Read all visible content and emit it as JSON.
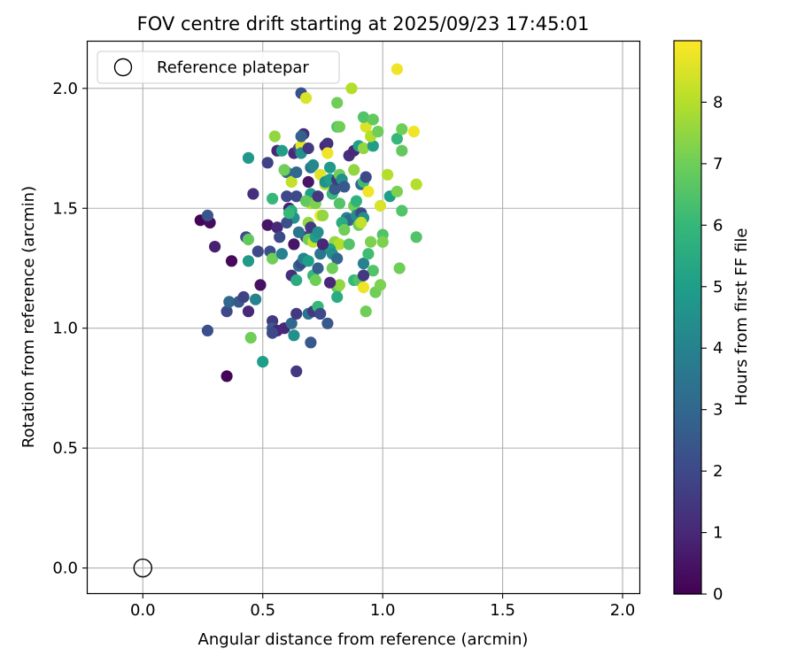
{
  "chart_data": {
    "type": "scatter",
    "title": "FOV centre drift starting at 2025/09/23 17:45:01",
    "xlabel": "Angular distance from reference (arcmin)",
    "ylabel": "Rotation from reference (arcmin)",
    "xlim": [
      -0.23,
      2.07
    ],
    "ylim": [
      -0.105,
      2.195
    ],
    "xticks": [
      0.0,
      0.5,
      1.0,
      1.5,
      2.0
    ],
    "xtick_labels": [
      "0.0",
      "0.5",
      "1.0",
      "1.5",
      "2.0"
    ],
    "yticks": [
      0.0,
      0.5,
      1.0,
      1.5,
      2.0
    ],
    "ytick_labels": [
      "0.0",
      "0.5",
      "1.0",
      "1.5",
      "2.0"
    ],
    "grid": true,
    "legend": {
      "position": "top-left",
      "label": "Reference platepar"
    },
    "reference_point": {
      "x": 0.0,
      "y": 0.0
    },
    "colorbar": {
      "label": "Hours from first FF file",
      "min": 0,
      "max": 9,
      "ticks": [
        0,
        1,
        2,
        3,
        4,
        5,
        6,
        7,
        8
      ],
      "tick_labels": [
        "0",
        "1",
        "2",
        "3",
        "4",
        "5",
        "6",
        "7",
        "8"
      ],
      "colormap": "viridis"
    },
    "colormap_stops": [
      "#440154",
      "#482878",
      "#3e4989",
      "#31688e",
      "#26828e",
      "#1f9e89",
      "#35b779",
      "#6ece58",
      "#b5de2b",
      "#fde725"
    ],
    "points": [
      [
        0.24,
        1.45,
        0.1
      ],
      [
        0.28,
        1.44,
        0.3
      ],
      [
        0.3,
        1.34,
        0.8
      ],
      [
        0.27,
        1.47,
        2.4
      ],
      [
        0.37,
        1.28,
        0.2
      ],
      [
        0.35,
        0.8,
        0.1
      ],
      [
        0.27,
        0.99,
        2.2
      ],
      [
        0.35,
        1.07,
        2.0
      ],
      [
        0.36,
        1.11,
        3.0
      ],
      [
        0.4,
        1.11,
        2.5
      ],
      [
        0.42,
        1.13,
        1.8
      ],
      [
        0.43,
        1.38,
        2.0
      ],
      [
        0.44,
        1.37,
        6.8
      ],
      [
        0.44,
        1.07,
        1.0
      ],
      [
        0.44,
        1.28,
        4.8
      ],
      [
        0.46,
        1.56,
        1.2
      ],
      [
        0.45,
        0.96,
        7.0
      ],
      [
        0.49,
        1.18,
        0.4
      ],
      [
        0.48,
        1.32,
        2.0
      ],
      [
        0.47,
        1.12,
        4.0
      ],
      [
        0.44,
        1.71,
        4.8
      ],
      [
        0.5,
        0.86,
        5.0
      ],
      [
        0.52,
        1.69,
        1.8
      ],
      [
        0.54,
        1.03,
        1.5
      ],
      [
        0.54,
        1.0,
        2.5
      ],
      [
        0.56,
        0.99,
        1.0
      ],
      [
        0.54,
        0.98,
        2.0
      ],
      [
        0.59,
        1.0,
        1.0
      ],
      [
        0.53,
        1.32,
        2.2
      ],
      [
        0.54,
        1.29,
        7.0
      ],
      [
        0.52,
        1.43,
        0.5
      ],
      [
        0.56,
        1.42,
        1.0
      ],
      [
        0.57,
        1.38,
        2.0
      ],
      [
        0.54,
        1.54,
        6.0
      ],
      [
        0.55,
        1.8,
        7.5
      ],
      [
        0.56,
        1.74,
        1.0
      ],
      [
        0.58,
        1.74,
        5.0
      ],
      [
        0.6,
        1.65,
        3.0
      ],
      [
        0.59,
        1.66,
        7.0
      ],
      [
        0.6,
        1.55,
        2.0
      ],
      [
        0.61,
        1.5,
        0.8
      ],
      [
        0.62,
        1.49,
        5.5
      ],
      [
        0.63,
        1.46,
        4.5
      ],
      [
        0.64,
        1.55,
        2.0
      ],
      [
        0.62,
        1.61,
        8.2
      ],
      [
        0.64,
        1.65,
        3.0
      ],
      [
        0.63,
        1.73,
        1.0
      ],
      [
        0.65,
        1.75,
        2.0
      ],
      [
        0.66,
        1.76,
        8.7
      ],
      [
        0.66,
        1.73,
        4.5
      ],
      [
        0.67,
        1.81,
        1.2
      ],
      [
        0.66,
        1.8,
        2.8
      ],
      [
        0.66,
        1.98,
        2.2
      ],
      [
        0.68,
        1.96,
        8.5
      ],
      [
        0.69,
        1.75,
        1.5
      ],
      [
        0.7,
        1.67,
        3.5
      ],
      [
        0.71,
        1.68,
        4.2
      ],
      [
        0.69,
        1.61,
        0.5
      ],
      [
        0.7,
        1.56,
        5.0
      ],
      [
        0.7,
        1.52,
        8.0
      ],
      [
        0.68,
        1.53,
        6.8
      ],
      [
        0.69,
        1.44,
        7.5
      ],
      [
        0.7,
        1.42,
        1.5
      ],
      [
        0.68,
        1.38,
        1.8
      ],
      [
        0.69,
        1.37,
        7.0
      ],
      [
        0.71,
        1.36,
        8.2
      ],
      [
        0.72,
        1.38,
        5.0
      ],
      [
        0.73,
        1.4,
        4.5
      ],
      [
        0.74,
        1.47,
        8.8
      ],
      [
        0.75,
        1.47,
        7.5
      ],
      [
        0.72,
        1.52,
        7.2
      ],
      [
        0.73,
        1.55,
        1.5
      ],
      [
        0.74,
        1.64,
        8.6
      ],
      [
        0.76,
        1.6,
        7.8
      ],
      [
        0.76,
        1.61,
        4.5
      ],
      [
        0.78,
        1.62,
        5.0
      ],
      [
        0.78,
        1.67,
        4.8
      ],
      [
        0.76,
        1.76,
        1.0
      ],
      [
        0.77,
        1.77,
        1.3
      ],
      [
        0.77,
        1.73,
        8.8
      ],
      [
        0.79,
        1.56,
        6.0
      ],
      [
        0.8,
        1.58,
        2.5
      ],
      [
        0.81,
        1.62,
        1.5
      ],
      [
        0.82,
        1.64,
        7.0
      ],
      [
        0.83,
        1.62,
        4.5
      ],
      [
        0.81,
        1.84,
        6.5
      ],
      [
        0.82,
        1.84,
        7.0
      ],
      [
        0.81,
        1.94,
        7.0
      ],
      [
        0.87,
        2.0,
        8.0
      ],
      [
        0.84,
        1.59,
        2.5
      ],
      [
        0.85,
        1.46,
        4.0
      ],
      [
        0.86,
        1.45,
        3.0
      ],
      [
        0.82,
        1.52,
        6.5
      ],
      [
        0.83,
        1.44,
        5.5
      ],
      [
        0.84,
        1.41,
        7.0
      ],
      [
        0.8,
        1.36,
        7.5
      ],
      [
        0.82,
        1.35,
        8.0
      ],
      [
        0.86,
        1.35,
        6.5
      ],
      [
        0.78,
        1.33,
        5.0
      ],
      [
        0.79,
        1.31,
        4.5
      ],
      [
        0.81,
        1.29,
        3.0
      ],
      [
        0.79,
        1.25,
        7.0
      ],
      [
        0.81,
        1.17,
        6.8
      ],
      [
        0.82,
        1.18,
        7.5
      ],
      [
        0.78,
        1.19,
        1.0
      ],
      [
        0.81,
        1.13,
        5.5
      ],
      [
        0.86,
        1.72,
        1.2
      ],
      [
        0.88,
        1.74,
        1.0
      ],
      [
        0.88,
        1.66,
        7.5
      ],
      [
        0.9,
        1.76,
        5.0
      ],
      [
        0.92,
        1.75,
        7.5
      ],
      [
        0.91,
        1.6,
        3.0
      ],
      [
        0.92,
        1.61,
        6.2
      ],
      [
        0.93,
        1.63,
        2.0
      ],
      [
        0.94,
        1.57,
        8.8
      ],
      [
        0.93,
        1.84,
        8.5
      ],
      [
        0.92,
        1.88,
        6.5
      ],
      [
        0.96,
        1.87,
        6.8
      ],
      [
        0.96,
        1.76,
        5.0
      ],
      [
        0.95,
        1.8,
        8.0
      ],
      [
        0.98,
        1.82,
        7.0
      ],
      [
        0.88,
        1.51,
        7.0
      ],
      [
        0.89,
        1.47,
        4.5
      ],
      [
        0.91,
        1.48,
        2.0
      ],
      [
        0.92,
        1.46,
        4.5
      ],
      [
        0.89,
        1.53,
        5.8
      ],
      [
        0.9,
        1.43,
        7.0
      ],
      [
        0.91,
        1.44,
        8.2
      ],
      [
        0.92,
        1.27,
        4.0
      ],
      [
        0.94,
        1.31,
        6.2
      ],
      [
        0.95,
        1.36,
        7.2
      ],
      [
        0.96,
        1.24,
        6.5
      ],
      [
        0.88,
        1.2,
        6.0
      ],
      [
        0.9,
        1.2,
        6.5
      ],
      [
        0.92,
        1.22,
        1.5
      ],
      [
        0.92,
        1.17,
        8.8
      ],
      [
        0.93,
        1.07,
        7.0
      ],
      [
        0.97,
        1.15,
        7.0
      ],
      [
        0.99,
        1.18,
        7.2
      ],
      [
        0.99,
        1.51,
        8.5
      ],
      [
        1.0,
        1.39,
        6.5
      ],
      [
        1.0,
        1.36,
        7.2
      ],
      [
        1.02,
        1.64,
        8.0
      ],
      [
        1.03,
        1.55,
        5.0
      ],
      [
        1.06,
        1.57,
        7.2
      ],
      [
        1.06,
        2.08,
        8.8
      ],
      [
        1.06,
        1.79,
        6.0
      ],
      [
        1.08,
        1.83,
        7.0
      ],
      [
        1.08,
        1.74,
        6.8
      ],
      [
        1.08,
        1.49,
        6.5
      ],
      [
        1.07,
        1.25,
        7.0
      ],
      [
        1.13,
        1.82,
        8.8
      ],
      [
        1.14,
        1.6,
        8.0
      ],
      [
        1.14,
        1.38,
        6.5
      ],
      [
        0.62,
        1.22,
        1.2
      ],
      [
        0.64,
        1.2,
        5.5
      ],
      [
        0.65,
        1.26,
        3.0
      ],
      [
        0.66,
        1.27,
        2.0
      ],
      [
        0.67,
        1.29,
        4.0
      ],
      [
        0.69,
        1.28,
        5.0
      ],
      [
        0.71,
        1.22,
        6.0
      ],
      [
        0.72,
        1.2,
        7.0
      ],
      [
        0.73,
        1.25,
        2.8
      ],
      [
        0.74,
        1.31,
        3.5
      ],
      [
        0.75,
        1.35,
        1.0
      ],
      [
        0.69,
        1.06,
        3.5
      ],
      [
        0.71,
        1.07,
        1.5
      ],
      [
        0.73,
        1.09,
        6.0
      ],
      [
        0.74,
        1.06,
        2.0
      ],
      [
        0.77,
        1.02,
        2.5
      ],
      [
        0.62,
        1.02,
        3.0
      ],
      [
        0.63,
        0.97,
        4.5
      ],
      [
        0.64,
        1.06,
        1.5
      ],
      [
        0.7,
        0.94,
        2.5
      ],
      [
        0.64,
        0.82,
        1.5
      ],
      [
        0.58,
        1.31,
        4.0
      ],
      [
        0.6,
        1.44,
        2.2
      ],
      [
        0.61,
        1.48,
        6.0
      ],
      [
        0.63,
        1.35,
        0.5
      ],
      [
        0.65,
        1.4,
        3.5
      ]
    ]
  }
}
